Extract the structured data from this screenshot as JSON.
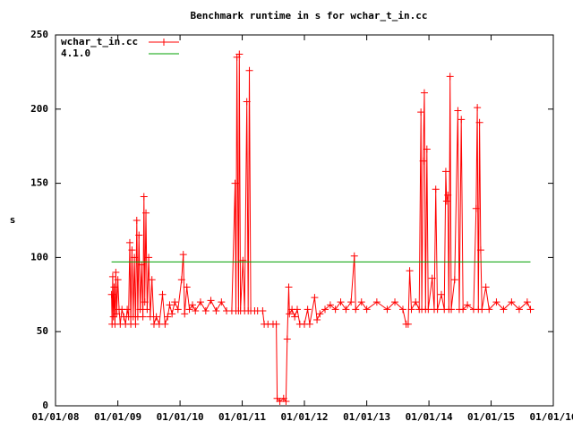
{
  "chart_data": {
    "type": "line",
    "title": "Benchmark runtime in s for wchar_t_in.cc",
    "y_label": "s",
    "xlim": [
      "2008-01-01",
      "2016-01-01"
    ],
    "xticks": [
      {
        "value": "2008-01-01",
        "label": "01/01/08"
      },
      {
        "value": "2009-01-01",
        "label": "01/01/09"
      },
      {
        "value": "2010-01-01",
        "label": "01/01/10"
      },
      {
        "value": "2011-01-01",
        "label": "01/01/11"
      },
      {
        "value": "2012-01-01",
        "label": "01/01/12"
      },
      {
        "value": "2013-01-01",
        "label": "01/01/13"
      },
      {
        "value": "2014-01-01",
        "label": "01/01/14"
      },
      {
        "value": "2015-01-01",
        "label": "01/01/15"
      },
      {
        "value": "2016-01-01",
        "label": "01/01/16"
      }
    ],
    "ylim": [
      0,
      250
    ],
    "yticks": [
      0,
      50,
      100,
      150,
      200,
      250
    ],
    "legend": "top-left",
    "series": [
      {
        "name": "wchar_t_in.cc",
        "color": "#ff0000",
        "markers": true,
        "x": [
          "2008-11-25",
          "2008-11-28",
          "2008-12-02",
          "2008-12-06",
          "2008-12-10",
          "2008-12-15",
          "2008-12-20",
          "2008-12-25",
          "2009-01-01",
          "2009-01-08",
          "2009-01-15",
          "2009-01-25",
          "2009-02-05",
          "2009-02-15",
          "2009-02-25",
          "2009-03-05",
          "2009-03-12",
          "2009-03-18",
          "2009-03-25",
          "2009-04-01",
          "2009-04-08",
          "2009-04-15",
          "2009-04-22",
          "2009-04-28",
          "2009-05-05",
          "2009-05-12",
          "2009-05-20",
          "2009-05-28",
          "2009-06-03",
          "2009-06-08",
          "2009-06-15",
          "2009-06-22",
          "2009-07-01",
          "2009-07-10",
          "2009-07-20",
          "2009-08-01",
          "2009-08-15",
          "2009-09-01",
          "2009-09-20",
          "2009-10-05",
          "2009-10-20",
          "2009-11-01",
          "2009-11-15",
          "2009-12-01",
          "2009-12-20",
          "2010-01-10",
          "2010-01-20",
          "2010-01-28",
          "2010-02-10",
          "2010-02-25",
          "2010-03-15",
          "2010-04-01",
          "2010-05-01",
          "2010-06-01",
          "2010-07-01",
          "2010-08-01",
          "2010-09-01",
          "2010-10-01",
          "2010-11-01",
          "2010-11-20",
          "2010-11-25",
          "2010-12-01",
          "2010-12-10",
          "2010-12-15",
          "2010-12-22",
          "2011-01-05",
          "2011-01-15",
          "2011-01-28",
          "2011-02-05",
          "2011-02-12",
          "2011-02-20",
          "2011-03-15",
          "2011-04-01",
          "2011-05-01",
          "2011-05-10",
          "2011-06-01",
          "2011-07-01",
          "2011-07-20",
          "2011-07-25",
          "2011-08-10",
          "2011-09-01",
          "2011-09-15",
          "2011-09-22",
          "2011-10-01",
          "2011-10-05",
          "2011-10-20",
          "2011-11-05",
          "2011-11-20",
          "2011-12-05",
          "2012-01-01",
          "2012-01-20",
          "2012-02-01",
          "2012-03-01",
          "2012-03-15",
          "2012-04-01",
          "2012-05-01",
          "2012-06-01",
          "2012-07-01",
          "2012-08-01",
          "2012-09-01",
          "2012-10-01",
          "2012-10-20",
          "2012-10-28",
          "2012-12-01",
          "2013-01-01",
          "2013-03-01",
          "2013-05-01",
          "2013-06-15",
          "2013-08-01",
          "2013-08-20",
          "2013-09-01",
          "2013-09-10",
          "2013-09-20",
          "2013-10-15",
          "2013-11-05",
          "2013-11-15",
          "2013-11-20",
          "2013-11-28",
          "2013-12-05",
          "2013-12-12",
          "2013-12-20",
          "2013-12-28",
          "2014-01-20",
          "2014-02-01",
          "2014-02-10",
          "2014-02-20",
          "2014-03-15",
          "2014-04-01",
          "2014-04-10",
          "2014-04-15",
          "2014-04-22",
          "2014-04-28",
          "2014-05-05",
          "2014-05-12",
          "2014-06-01",
          "2014-06-20",
          "2014-06-28",
          "2014-07-10",
          "2014-07-20",
          "2014-08-15",
          "2014-09-20",
          "2014-10-05",
          "2014-10-12",
          "2014-10-18",
          "2014-10-25",
          "2014-11-01",
          "2014-11-08",
          "2014-12-01",
          "2014-12-20",
          "2015-02-01",
          "2015-03-15",
          "2015-05-01",
          "2015-06-15",
          "2015-08-01",
          "2015-08-20"
        ],
        "values": [
          75,
          55,
          87,
          60,
          80,
          55,
          90,
          62,
          85,
          65,
          55,
          65,
          60,
          55,
          65,
          60,
          110,
          55,
          105,
          60,
          100,
          55,
          125,
          60,
          115,
          65,
          95,
          60,
          141,
          70,
          130,
          65,
          100,
          60,
          85,
          55,
          60,
          55,
          75,
          55,
          60,
          68,
          62,
          70,
          65,
          85,
          102,
          62,
          80,
          65,
          68,
          64,
          70,
          64,
          71,
          64,
          70,
          64,
          64,
          150,
          64,
          235,
          64,
          237,
          64,
          98,
          64,
          205,
          64,
          226,
          64,
          64,
          64,
          64,
          55,
          55,
          55,
          55,
          5,
          3,
          5,
          3,
          45,
          80,
          62,
          65,
          60,
          65,
          55,
          55,
          65,
          55,
          73,
          58,
          62,
          65,
          68,
          65,
          70,
          65,
          70,
          101,
          65,
          70,
          65,
          70,
          65,
          70,
          65,
          55,
          55,
          91,
          65,
          70,
          65,
          198,
          65,
          165,
          211,
          65,
          173,
          65,
          86,
          65,
          146,
          65,
          75,
          65,
          158,
          138,
          142,
          65,
          222,
          65,
          85,
          199,
          65,
          193,
          65,
          68,
          65,
          133,
          201,
          65,
          191,
          105,
          65,
          80,
          65,
          70,
          65,
          70,
          65,
          70,
          65
        ]
      },
      {
        "name": "4.1.0",
        "color": "#00a000",
        "markers": false,
        "x": [
          "2008-11-25",
          "2015-08-20"
        ],
        "values": [
          97,
          97
        ]
      }
    ]
  }
}
